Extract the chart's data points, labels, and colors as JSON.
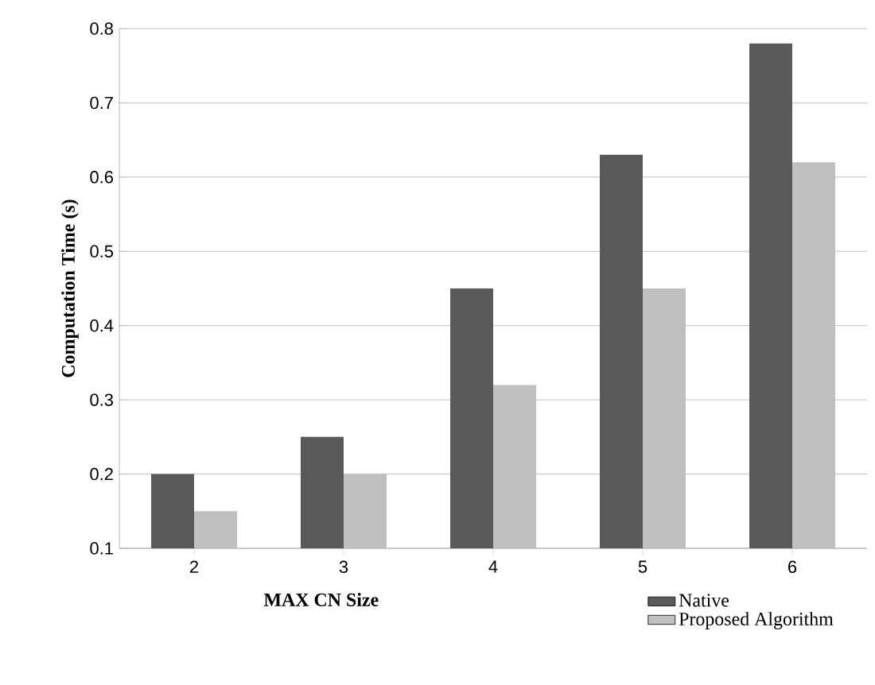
{
  "chart_data": {
    "type": "bar",
    "xlabel": "MAX CN Size",
    "ylabel": "Computation Time (s)",
    "categories": [
      "2",
      "3",
      "4",
      "5",
      "6"
    ],
    "series": [
      {
        "name": "Native",
        "color": "#595959",
        "values": [
          0.2,
          0.25,
          0.45,
          0.63,
          0.78
        ]
      },
      {
        "name": "Proposed Algorithm",
        "color": "#bfbfbf",
        "values": [
          0.15,
          0.2,
          0.32,
          0.45,
          0.62
        ]
      }
    ],
    "ylim": [
      0.1,
      0.8
    ],
    "yticks": [
      0.1,
      0.2,
      0.3,
      0.4,
      0.5,
      0.6,
      0.7,
      0.8
    ],
    "grid": "y",
    "legend": "bottom right"
  }
}
